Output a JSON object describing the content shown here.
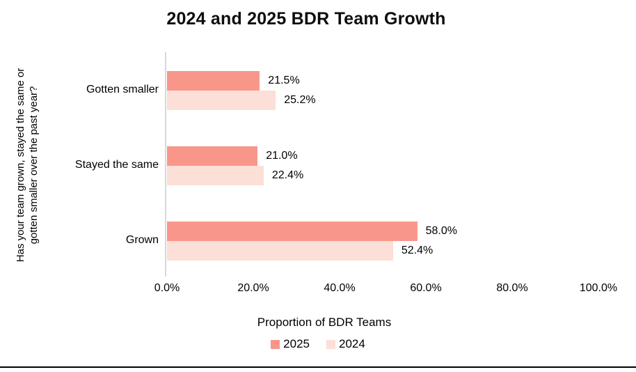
{
  "chart_data": {
    "type": "bar",
    "orientation": "horizontal",
    "title": "2024 and 2025 BDR Team Growth",
    "categories": [
      "Gotten smaller",
      "Stayed the same",
      "Grown"
    ],
    "series": [
      {
        "name": "2025",
        "color": "#F9968A",
        "values": [
          21.5,
          21.0,
          58.0
        ],
        "labels": [
          "21.5%",
          "21.0%",
          "58.0%"
        ]
      },
      {
        "name": "2024",
        "color": "#FCDFD7",
        "values": [
          25.2,
          22.4,
          52.4
        ],
        "labels": [
          "25.2%",
          "22.4%",
          "52.4%"
        ]
      }
    ],
    "xlabel": "Proportion of BDR Teams",
    "ylabel_line1": "Has your team grown, stayed the same or",
    "ylabel_line2": "gotten smaller over the past year?",
    "x_ticks": [
      "0.0%",
      "20.0%",
      "40.0%",
      "60.0%",
      "80.0%",
      "100.0%"
    ],
    "xlim": [
      0,
      100
    ],
    "grid": false,
    "legend_position": "bottom",
    "axis_line_color": "#D9D9D9",
    "value_label_color": "#000000"
  }
}
